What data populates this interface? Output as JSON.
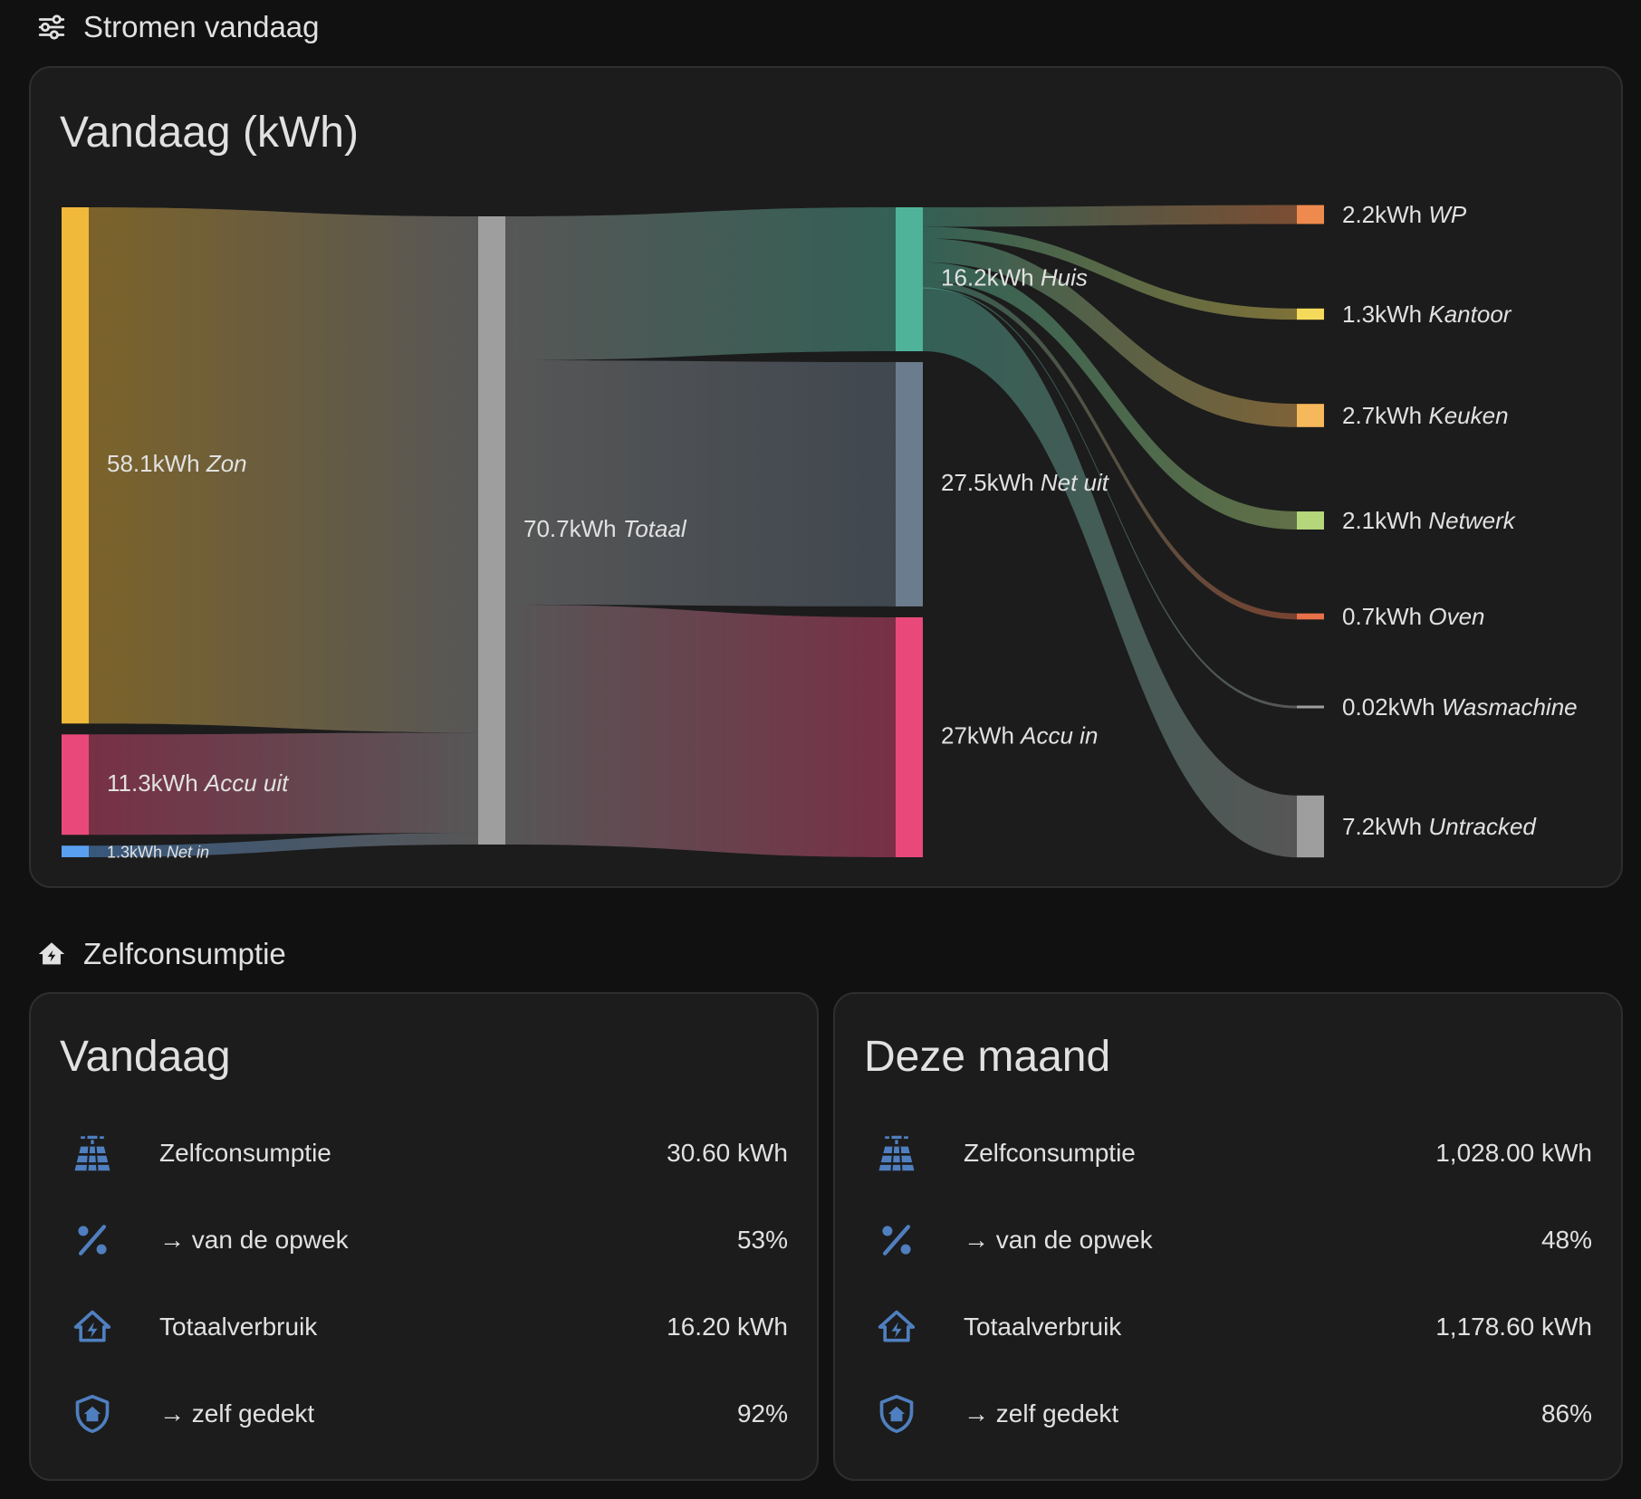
{
  "sections": {
    "flows_title": "Stromen vandaag",
    "selfcons_title": "Zelfconsumptie"
  },
  "sankey_card": {
    "title": "Vandaag (kWh)"
  },
  "chart_data": {
    "type": "sankey",
    "unit": "kWh",
    "sources": [
      {
        "id": "zon",
        "value_label": "58.1kWh",
        "name": "Zon",
        "value": 58.1,
        "color": "#f0b93a"
      },
      {
        "id": "accu_uit",
        "value_label": "11.3kWh",
        "name": "Accu uit",
        "value": 11.3,
        "color": "#e8497a"
      },
      {
        "id": "net_in",
        "value_label": "1.3kWh",
        "name": "Net in",
        "value": 1.3,
        "color": "#5aa0f0"
      }
    ],
    "total": {
      "id": "totaal",
      "value_label": "70.7kWh",
      "name": "Totaal",
      "value": 70.7,
      "color": "#9e9e9e"
    },
    "outputs": [
      {
        "id": "huis",
        "value_label": "16.2kWh",
        "name": "Huis",
        "value": 16.2,
        "color": "#4fb39a"
      },
      {
        "id": "net_uit",
        "value_label": "27.5kWh",
        "name": "Net uit",
        "value": 27.5,
        "color": "#6b7c8e"
      },
      {
        "id": "accu_in",
        "value_label": "27kWh",
        "name": "Accu in",
        "value": 27.0,
        "color": "#e8497a"
      }
    ],
    "consumers": [
      {
        "id": "wp",
        "value_label": "2.2kWh",
        "name": "WP",
        "value": 2.2,
        "color": "#ee8a4e"
      },
      {
        "id": "kantoor",
        "value_label": "1.3kWh",
        "name": "Kantoor",
        "value": 1.3,
        "color": "#f5d95a"
      },
      {
        "id": "keuken",
        "value_label": "2.7kWh",
        "name": "Keuken",
        "value": 2.7,
        "color": "#f5b85a"
      },
      {
        "id": "netwerk",
        "value_label": "2.1kWh",
        "name": "Netwerk",
        "value": 2.1,
        "color": "#b5d67a"
      },
      {
        "id": "oven",
        "value_label": "0.7kWh",
        "name": "Oven",
        "value": 0.7,
        "color": "#e8714a"
      },
      {
        "id": "wasmachine",
        "value_label": "0.02kWh",
        "name": "Wasmachine",
        "value": 0.02,
        "color": "#9e9e9e"
      },
      {
        "id": "untracked",
        "value_label": "7.2kWh",
        "name": "Untracked",
        "value": 7.2,
        "color": "#9e9e9e"
      }
    ]
  },
  "today_card": {
    "title": "Vandaag",
    "rows": [
      {
        "icon": "solar-panel-icon",
        "label": "Zelfconsumptie",
        "value": "30.60 kWh"
      },
      {
        "icon": "percent-icon",
        "label": "→ van de opwek",
        "value": "53%"
      },
      {
        "icon": "home-lightning-icon",
        "label": "Totaalverbruik",
        "value": "16.20 kWh"
      },
      {
        "icon": "shield-home-icon",
        "label": "→ zelf gedekt",
        "value": "92%"
      }
    ]
  },
  "month_card": {
    "title": "Deze maand",
    "rows": [
      {
        "icon": "solar-panel-icon",
        "label": "Zelfconsumptie",
        "value": "1,028.00 kWh"
      },
      {
        "icon": "percent-icon",
        "label": "→ van de opwek",
        "value": "48%"
      },
      {
        "icon": "home-lightning-icon",
        "label": "Totaalverbruik",
        "value": "1,178.60 kWh"
      },
      {
        "icon": "shield-home-icon",
        "label": "→ zelf gedekt",
        "value": "86%"
      }
    ]
  },
  "colors": {
    "background": "#111111",
    "card": "#1c1c1c",
    "icon_blue": "#4f7fbf"
  }
}
